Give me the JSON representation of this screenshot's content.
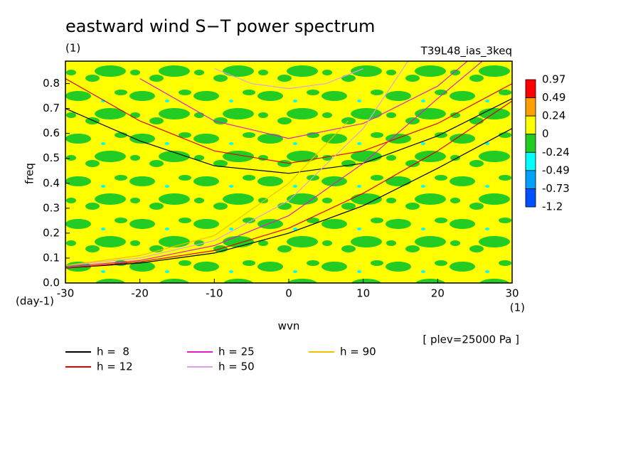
{
  "chart_data": {
    "type": "line",
    "title": "eastward wind S−T power spectrum",
    "subtitle": "(1)",
    "annotation_right": "T39L48_ias_3keq",
    "ylabel": "freq",
    "yunit": "(day-1)",
    "xlabel": "wvn",
    "xunit": "(1)",
    "footnote": "[ plev=25000 Pa ]",
    "xlim": [
      -30,
      30
    ],
    "ylim": [
      0,
      0.89
    ],
    "xticks": [
      -30,
      -20,
      -10,
      0,
      10,
      20,
      30
    ],
    "yticks": [
      {
        "value": 0,
        "label": "0.0"
      },
      0.1,
      0.2,
      0.3,
      0.4,
      0.5,
      0.6,
      0.7,
      0.8
    ],
    "colorbar": {
      "levels": [
        0.97,
        0.49,
        0.24,
        0,
        -0.24,
        -0.49,
        -0.73,
        -1.2
      ],
      "colors": [
        "#ff0000",
        "#ffa000",
        "#ffff00",
        "#22cc22",
        "#00ffff",
        "#00a0ff",
        "#0050ff"
      ]
    },
    "series": [
      {
        "name": "h =  8",
        "color": "#000000",
        "x": [
          -30,
          -20,
          -10,
          0,
          10,
          20,
          30,
          null,
          -30,
          -20,
          -10,
          0,
          10,
          20,
          30
        ],
        "values": [
          0.7,
          0.57,
          0.47,
          0.44,
          0.48,
          0.59,
          0.74,
          null,
          0.06,
          0.08,
          0.12,
          0.2,
          0.31,
          0.46,
          0.62
        ]
      },
      {
        "name": "h = 12",
        "color": "#e00000",
        "x": [
          -30,
          -20,
          -10,
          0,
          10,
          20,
          30,
          null,
          -30,
          -20,
          -10,
          0,
          10,
          20,
          30
        ],
        "values": [
          0.82,
          0.65,
          0.53,
          0.48,
          0.53,
          0.64,
          0.8,
          null,
          0.06,
          0.085,
          0.13,
          0.22,
          0.36,
          0.53,
          0.73
        ]
      },
      {
        "name": "h = 25",
        "color": "#e020c0",
        "x": [
          -20,
          -10,
          0,
          10,
          20,
          24,
          null,
          -30,
          -20,
          -10,
          0,
          10,
          20,
          26
        ],
        "values": [
          0.82,
          0.65,
          0.58,
          0.64,
          0.79,
          0.89,
          null,
          0.065,
          0.09,
          0.15,
          0.27,
          0.48,
          0.74,
          0.89
        ]
      },
      {
        "name": "h = 50",
        "color": "#e0a0e0",
        "x": [
          -10,
          -5,
          0,
          5,
          10,
          null,
          -30,
          -20,
          -10,
          0,
          10,
          16
        ],
        "values": [
          0.86,
          0.8,
          0.78,
          0.8,
          0.86,
          null,
          0.07,
          0.1,
          0.17,
          0.33,
          0.62,
          0.89
        ]
      },
      {
        "name": "h = 90",
        "color": "#f0c000",
        "x": [
          -30,
          -20,
          -10,
          0,
          8
        ],
        "values": [
          0.07,
          0.11,
          0.19,
          0.4,
          0.65
        ]
      }
    ]
  }
}
